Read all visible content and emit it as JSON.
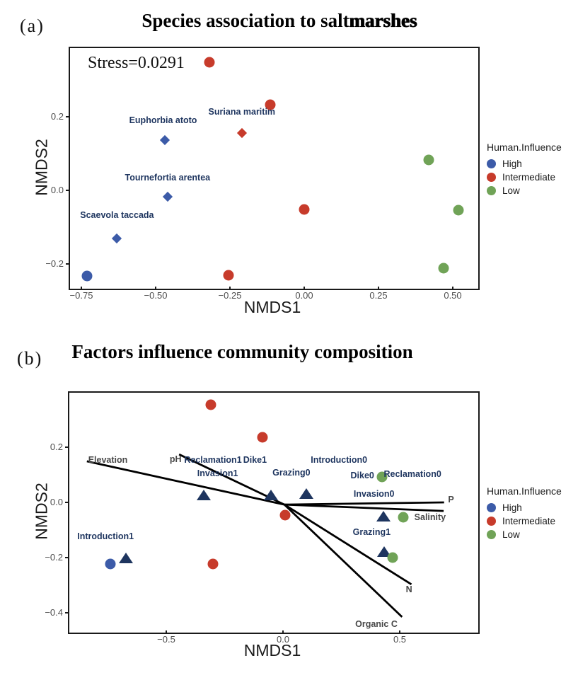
{
  "legend": {
    "title": "Human.Influence",
    "items": [
      {
        "label": "High",
        "color": "#3C5BA8"
      },
      {
        "label": "Intermediate",
        "color": "#C73B2B"
      },
      {
        "label": "Low",
        "color": "#70A357"
      }
    ]
  },
  "colors": {
    "high": "#3C5BA8",
    "intermediate": "#C73B2B",
    "low": "#70A357",
    "centroid": "#1E355F",
    "species_label": "#1E355F",
    "env_label": "#474747",
    "vector": "#000000"
  },
  "chart_data": [
    {
      "type": "scatter",
      "panel_tag": "(a)",
      "title": "Species association to saltmarshes",
      "title_parts": [
        "Species association to salt",
        "marshes"
      ],
      "annotation": "Stress=0.0291",
      "xlabel": "NMDS1",
      "ylabel": "NMDS2",
      "xlim": [
        -0.79,
        0.575
      ],
      "ylim": [
        -0.26,
        0.385
      ],
      "grid": false,
      "legend_position": "right",
      "x_ticks": [
        -0.75,
        -0.5,
        -0.25,
        0,
        0.25,
        0.5
      ],
      "x_tick_labels": [
        "−0.75",
        "−0.50",
        "−0.25",
        "0.00",
        "0.25",
        "0.50"
      ],
      "y_ticks": [
        0.2,
        0,
        -0.2
      ],
      "y_tick_labels": [
        "0.2",
        "0.0",
        "−0.2"
      ],
      "series": [
        {
          "name": "High",
          "marker": "circle",
          "color": "#3C5BA8",
          "points": [
            [
              -0.73,
              -0.232
            ]
          ]
        },
        {
          "name": "Intermediate",
          "marker": "circle",
          "color": "#C73B2B",
          "points": [
            [
              -0.32,
              0.347
            ],
            [
              -0.115,
              0.232
            ],
            [
              0.0,
              -0.052
            ],
            [
              -0.255,
              -0.23
            ]
          ]
        },
        {
          "name": "Low",
          "marker": "circle",
          "color": "#70A357",
          "points": [
            [
              0.42,
              0.082
            ],
            [
              0.52,
              -0.054
            ],
            [
              0.47,
              -0.21
            ]
          ]
        }
      ],
      "species_points": [
        {
          "name": "Euphorbia atoto",
          "x": -0.47,
          "y": 0.136,
          "color": "#3C5BA8",
          "label_x": -0.475,
          "label_y": 0.19
        },
        {
          "name": "Suriana maritim",
          "x": -0.21,
          "y": 0.155,
          "color": "#C73B2B",
          "label_x": -0.21,
          "label_y": 0.213
        },
        {
          "name": "Tournefortia arentea",
          "x": -0.46,
          "y": -0.017,
          "color": "#3C5BA8",
          "label_x": -0.46,
          "label_y": 0.035
        },
        {
          "name": "Scaevola taccada",
          "x": -0.63,
          "y": -0.13,
          "color": "#3C5BA8",
          "label_x": -0.63,
          "label_y": -0.067
        }
      ]
    },
    {
      "type": "scatter",
      "panel_tag": "(b)",
      "title": "Factors influence community composition",
      "xlabel": "NMDS1",
      "ylabel": "NMDS2",
      "xlim": [
        -0.915,
        0.824
      ],
      "ylim": [
        -0.462,
        0.397
      ],
      "grid": false,
      "legend_position": "right",
      "x_ticks": [
        -0.5,
        0,
        0.5
      ],
      "x_tick_labels": [
        "−0.5",
        "0.0",
        "0.5"
      ],
      "y_ticks": [
        0.2,
        0,
        -0.2,
        -0.4
      ],
      "y_tick_labels": [
        "0.2",
        "0.0",
        "−0.2",
        "−0.4"
      ],
      "series": [
        {
          "name": "High",
          "marker": "circle",
          "color": "#3C5BA8",
          "points": [
            [
              -0.74,
              -0.223
            ]
          ]
        },
        {
          "name": "Intermediate",
          "marker": "circle",
          "color": "#C73B2B",
          "points": [
            [
              -0.31,
              0.354
            ],
            [
              -0.088,
              0.236
            ],
            [
              0.009,
              -0.046
            ],
            [
              -0.3,
              -0.223
            ]
          ]
        },
        {
          "name": "Low",
          "marker": "circle",
          "color": "#70A357",
          "points": [
            [
              0.424,
              0.092
            ],
            [
              0.515,
              -0.054
            ],
            [
              0.47,
              -0.2
            ]
          ]
        }
      ],
      "centroids": [
        [
          -0.339,
          0.026
        ],
        [
          -0.052,
          0.026
        ],
        [
          0.1,
          0.031
        ],
        [
          0.43,
          -0.051
        ],
        [
          0.433,
          -0.179
        ],
        [
          -0.673,
          -0.203
        ]
      ],
      "vector_origin": [
        0.006,
        -0.008
      ],
      "vectors": [
        {
          "name": "Elevation",
          "x": -0.84,
          "y": 0.149,
          "label_x": -0.75,
          "label_y": 0.154
        },
        {
          "name": "pH",
          "x": -0.445,
          "y": 0.174,
          "label_x": -0.46,
          "label_y": 0.156
        },
        {
          "name": "P",
          "x": 0.69,
          "y": 0.0,
          "label_x": 0.72,
          "label_y": 0.01
        },
        {
          "name": "Salinity",
          "x": 0.688,
          "y": -0.031,
          "label_x": 0.63,
          "label_y": -0.054
        },
        {
          "name": "N",
          "x": 0.55,
          "y": -0.297,
          "label_x": 0.54,
          "label_y": -0.315
        },
        {
          "name": "Organic C",
          "x": 0.51,
          "y": -0.415,
          "label_x": 0.4,
          "label_y": -0.441
        }
      ],
      "factor_labels": [
        {
          "text": "Reclamation1",
          "x": -0.3,
          "y": 0.154
        },
        {
          "text": "Dike1",
          "x": -0.12,
          "y": 0.154
        },
        {
          "text": "Introduction0",
          "x": 0.24,
          "y": 0.154
        },
        {
          "text": "Invasion1",
          "x": -0.28,
          "y": 0.105
        },
        {
          "text": "Grazing0",
          "x": 0.036,
          "y": 0.108
        },
        {
          "text": "Dike0",
          "x": 0.34,
          "y": 0.097
        },
        {
          "text": "Reclamation0",
          "x": 0.555,
          "y": 0.103
        },
        {
          "text": "Invasion0",
          "x": 0.39,
          "y": 0.031
        },
        {
          "text": "Grazing1",
          "x": 0.38,
          "y": -0.108
        },
        {
          "text": "Introduction1",
          "x": -0.76,
          "y": -0.123
        }
      ]
    }
  ]
}
